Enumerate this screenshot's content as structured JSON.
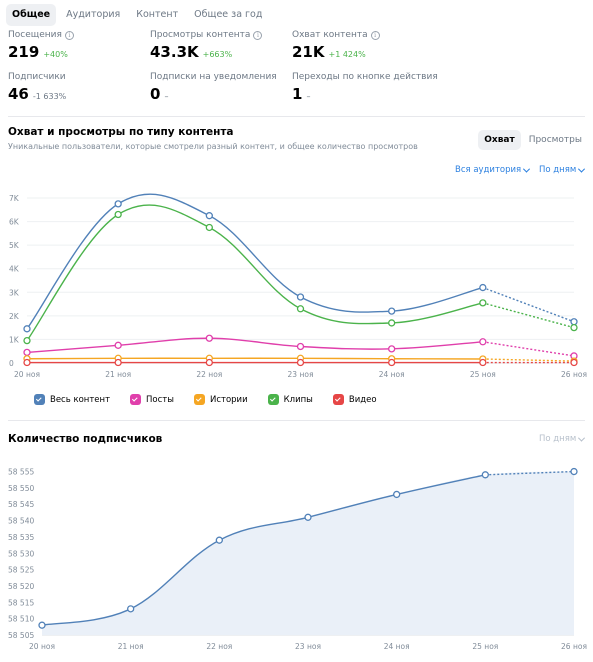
{
  "tabs": [
    {
      "label": "Общее",
      "active": true
    },
    {
      "label": "Аудитория",
      "active": false
    },
    {
      "label": "Контент",
      "active": false
    },
    {
      "label": "Общее за год",
      "active": false
    }
  ],
  "stats": {
    "visits": {
      "label": "Посещения",
      "value": "219",
      "delta": "+40%"
    },
    "views": {
      "label": "Просмотры контента",
      "value": "43.3K",
      "delta": "+663%"
    },
    "reach": {
      "label": "Охват контента",
      "value": "21K",
      "delta": "+1 424%"
    },
    "subscribers": {
      "label": "Подписчики",
      "value": "46",
      "delta": "-1 633%"
    },
    "notifications": {
      "label": "Подписки на уведомления",
      "value": "0",
      "delta": "–"
    },
    "action_clicks": {
      "label": "Переходы по кнопке действия",
      "value": "1",
      "delta": "–"
    }
  },
  "reach_section": {
    "title": "Охват и просмотры по типу контента",
    "subtitle": "Уникальные пользователи, которые смотрели разный контент, и общее количество просмотров",
    "toggle": [
      {
        "label": "Охват",
        "active": true
      },
      {
        "label": "Просмотры",
        "active": false
      }
    ],
    "audience_filter": "Вся аудитория",
    "period_filter": "По дням"
  },
  "subs_section": {
    "title": "Количество подписчиков",
    "period_filter": "По дням"
  },
  "colors": {
    "all": "#5181b8",
    "posts": "#e03fab",
    "stories": "#f5a623",
    "clips": "#4bb34b",
    "video": "#e64646"
  },
  "chart_data": [
    {
      "type": "line",
      "x": [
        "20 ноя",
        "21 ноя",
        "22 ноя",
        "23 ноя",
        "24 ноя",
        "25 ноя",
        "26 ноя"
      ],
      "yticks": [
        "0",
        "1K",
        "2K",
        "3K",
        "4K",
        "5K",
        "6K",
        "7K"
      ],
      "ylim": [
        0,
        7000
      ],
      "grid": true,
      "legend_position": "bottom",
      "series": [
        {
          "name": "Весь контент",
          "key": "all",
          "values": [
            1450,
            6750,
            6250,
            2800,
            2200,
            3200,
            1750
          ]
        },
        {
          "name": "Посты",
          "key": "posts",
          "values": [
            450,
            750,
            1050,
            700,
            600,
            900,
            300
          ]
        },
        {
          "name": "Истории",
          "key": "stories",
          "values": [
            180,
            200,
            200,
            200,
            180,
            170,
            80
          ]
        },
        {
          "name": "Клипы",
          "key": "clips",
          "values": [
            950,
            6300,
            5750,
            2300,
            1700,
            2550,
            1500
          ]
        },
        {
          "name": "Видео",
          "key": "video",
          "values": [
            20,
            20,
            20,
            20,
            20,
            20,
            20
          ]
        }
      ],
      "last_segment_dotted": true
    },
    {
      "type": "area",
      "x": [
        "20 ноя",
        "21 ноя",
        "22 ноя",
        "23 ноя",
        "24 ноя",
        "25 ноя",
        "26 ноя"
      ],
      "yticks": [
        "58 505",
        "58 510",
        "58 515",
        "58 520",
        "58 525",
        "58 530",
        "58 535",
        "58 540",
        "58 545",
        "58 550",
        "58 555"
      ],
      "ylim": [
        58505,
        58557
      ],
      "values": [
        58508,
        58513,
        58534,
        58541,
        58548,
        58554,
        58555
      ],
      "last_segment_dotted": true
    }
  ]
}
